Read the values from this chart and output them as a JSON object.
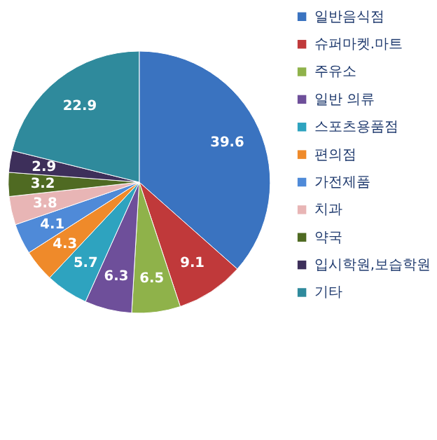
{
  "chart_data": {
    "type": "pie",
    "categories": [
      "일반음식점",
      "슈퍼마켓.마트",
      "주유소",
      "일반 의류",
      "스포츠용품점",
      "편의점",
      "가전제품",
      "치과",
      "약국",
      "입시학원,보습학원",
      "기타"
    ],
    "values": [
      39.6,
      9.1,
      6.5,
      6.3,
      5.7,
      4.3,
      4.1,
      3.8,
      3.2,
      2.9,
      22.9
    ],
    "colors": [
      "#3a73c0",
      "#c0393a",
      "#8fb24a",
      "#6e4f9a",
      "#2ea3bf",
      "#ef8a2a",
      "#4f8ad8",
      "#e8b5b5",
      "#4f6a22",
      "#3d2f5a",
      "#2f8a9c"
    ],
    "data_labels": true,
    "legend": "right"
  }
}
